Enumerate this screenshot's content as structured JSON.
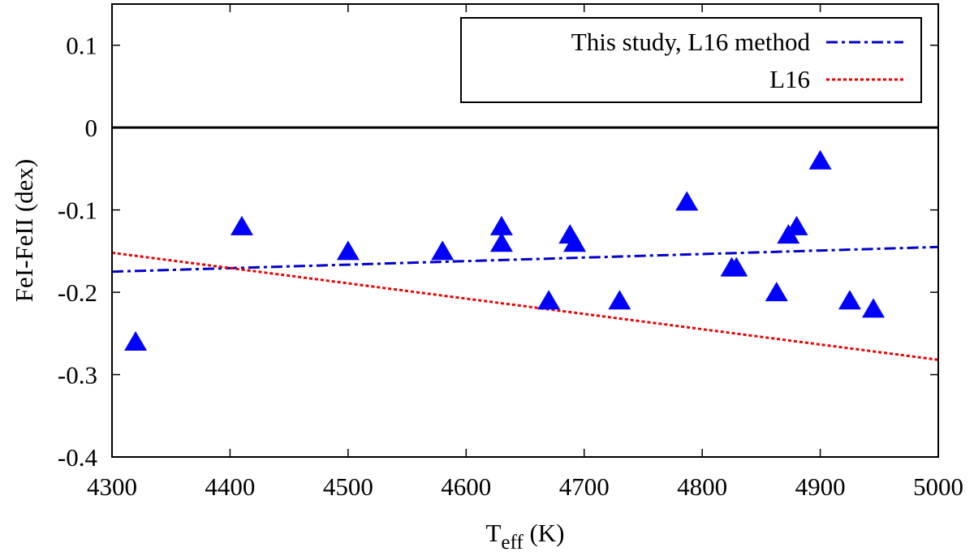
{
  "chart_data": {
    "type": "scatter",
    "xlabel": {
      "main": "T",
      "sub": "eff",
      "unit": "(K)"
    },
    "ylabel": "FeI-FeII (dex)",
    "xlim": [
      4300,
      5000
    ],
    "ylim": [
      -0.4,
      0.15
    ],
    "xticks": [
      4300,
      4400,
      4500,
      4600,
      4700,
      4800,
      4900,
      5000
    ],
    "yticks": [
      0.1,
      0,
      -0.1,
      -0.2,
      -0.3,
      -0.4
    ],
    "xtick_labels": [
      "4300",
      "4400",
      "4500",
      "4600",
      "4700",
      "4800",
      "4900",
      "5000"
    ],
    "ytick_labels": [
      "0.1",
      "0",
      "-0.1",
      "-0.2",
      "-0.3",
      "-0.4"
    ],
    "zero_line": true,
    "grid": false,
    "legend_position": "top-right",
    "points": {
      "marker": "triangle",
      "color": "#0000ff",
      "x": [
        4320,
        4410,
        4500,
        4580,
        4630,
        4630,
        4670,
        4688,
        4692,
        4730,
        4787,
        4825,
        4829,
        4863,
        4873,
        4880,
        4900,
        4925,
        4945
      ],
      "y": [
        -0.26,
        -0.12,
        -0.15,
        -0.15,
        -0.12,
        -0.14,
        -0.21,
        -0.13,
        -0.14,
        -0.21,
        -0.09,
        -0.17,
        -0.17,
        -0.2,
        -0.13,
        -0.12,
        -0.04,
        -0.21,
        -0.22
      ]
    },
    "series": [
      {
        "name": "This study, L16 method",
        "style": "dash-dot",
        "color": "#0000cc",
        "x": [
          4300,
          5000
        ],
        "y": [
          -0.175,
          -0.145
        ]
      },
      {
        "name": "L16",
        "style": "dotted",
        "color": "#ee0000",
        "x": [
          4300,
          5000
        ],
        "y": [
          -0.152,
          -0.282
        ]
      }
    ]
  }
}
